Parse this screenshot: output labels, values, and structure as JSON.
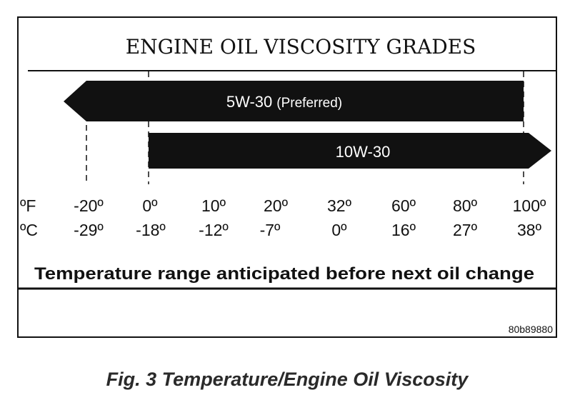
{
  "title": "ENGINE OIL VISCOSITY GRADES",
  "grades": [
    {
      "label": "5W-30",
      "note": "(Preferred)",
      "min_f": -20,
      "max_f": 100,
      "direction": "left"
    },
    {
      "label": "10W-30",
      "note": "",
      "min_f": 0,
      "max_f": 100,
      "direction": "right"
    }
  ],
  "scale": {
    "fahrenheit_unit": "ºF",
    "celsius_unit": "ºC",
    "fahrenheit": [
      "-20º",
      "0º",
      "10º",
      "20º",
      "32º",
      "60º",
      "80º",
      "100º"
    ],
    "celsius": [
      "-29º",
      "-18º",
      "-12º",
      "-7º",
      "0º",
      "16º",
      "27º",
      "38º"
    ]
  },
  "range_caption": "Temperature range anticipated before next oil change",
  "figure_code": "80b89880",
  "figure_caption": "Fig. 3 Temperature/Engine Oil Viscosity"
}
